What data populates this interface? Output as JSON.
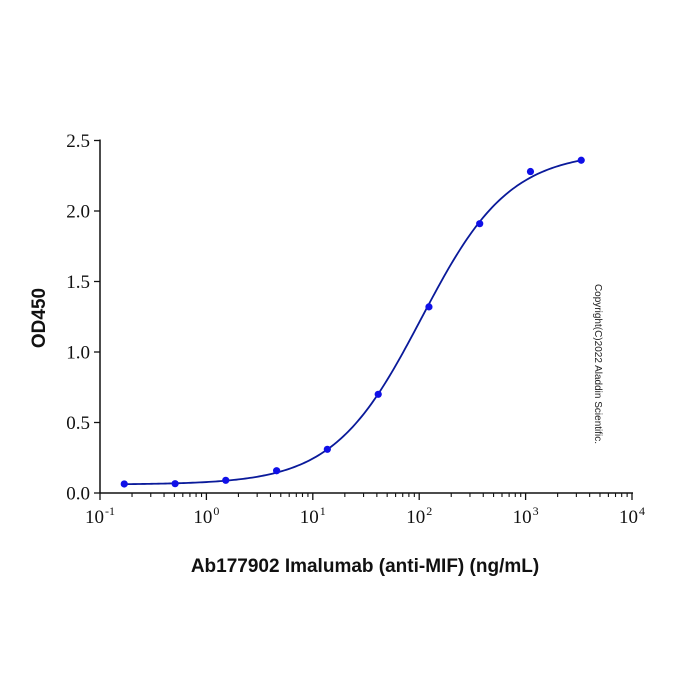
{
  "chart_data": {
    "type": "scatter",
    "title": "",
    "xlabel": "Ab177902 Imalumab (anti-MIF) (ng/mL)",
    "ylabel": "OD450",
    "xscale": "log",
    "xlim": [
      0.1,
      10000
    ],
    "ylim": [
      0,
      2.5
    ],
    "x_ticks": [
      {
        "value": 0.1,
        "base": "10",
        "exp": "-1"
      },
      {
        "value": 1,
        "base": "10",
        "exp": "0"
      },
      {
        "value": 10,
        "base": "10",
        "exp": "1"
      },
      {
        "value": 100,
        "base": "10",
        "exp": "2"
      },
      {
        "value": 1000,
        "base": "10",
        "exp": "3"
      },
      {
        "value": 10000,
        "base": "10",
        "exp": "4"
      }
    ],
    "y_ticks": [
      "0.0",
      "0.5",
      "1.0",
      "1.5",
      "2.0",
      "2.5"
    ],
    "grid": false,
    "legend": null,
    "series": [
      {
        "name": "Ab177902 Imalumab (anti-MIF)",
        "x": [
          0.169,
          0.508,
          1.52,
          4.57,
          13.7,
          41.2,
          123.5,
          370.4,
          1111,
          3333
        ],
        "y": [
          0.064,
          0.066,
          0.09,
          0.158,
          0.31,
          0.7,
          1.32,
          1.91,
          2.28,
          2.36
        ],
        "marker_color": "#1010e8",
        "line_color": "#0a1a9a",
        "fit": {
          "model": "4PL",
          "bottom": 0.06,
          "top": 2.42,
          "ec50": 105,
          "hill": 1.05
        }
      }
    ],
    "annotations": [
      "Copyright(C)2022 Aladdin Scientific."
    ]
  },
  "labels": {
    "x_axis_title": "Ab177902 Imalumab (anti-MIF) (ng/mL)",
    "y_axis_title": "OD450",
    "copyright": "Copyright(C)2022 Aladdin Scientific."
  }
}
